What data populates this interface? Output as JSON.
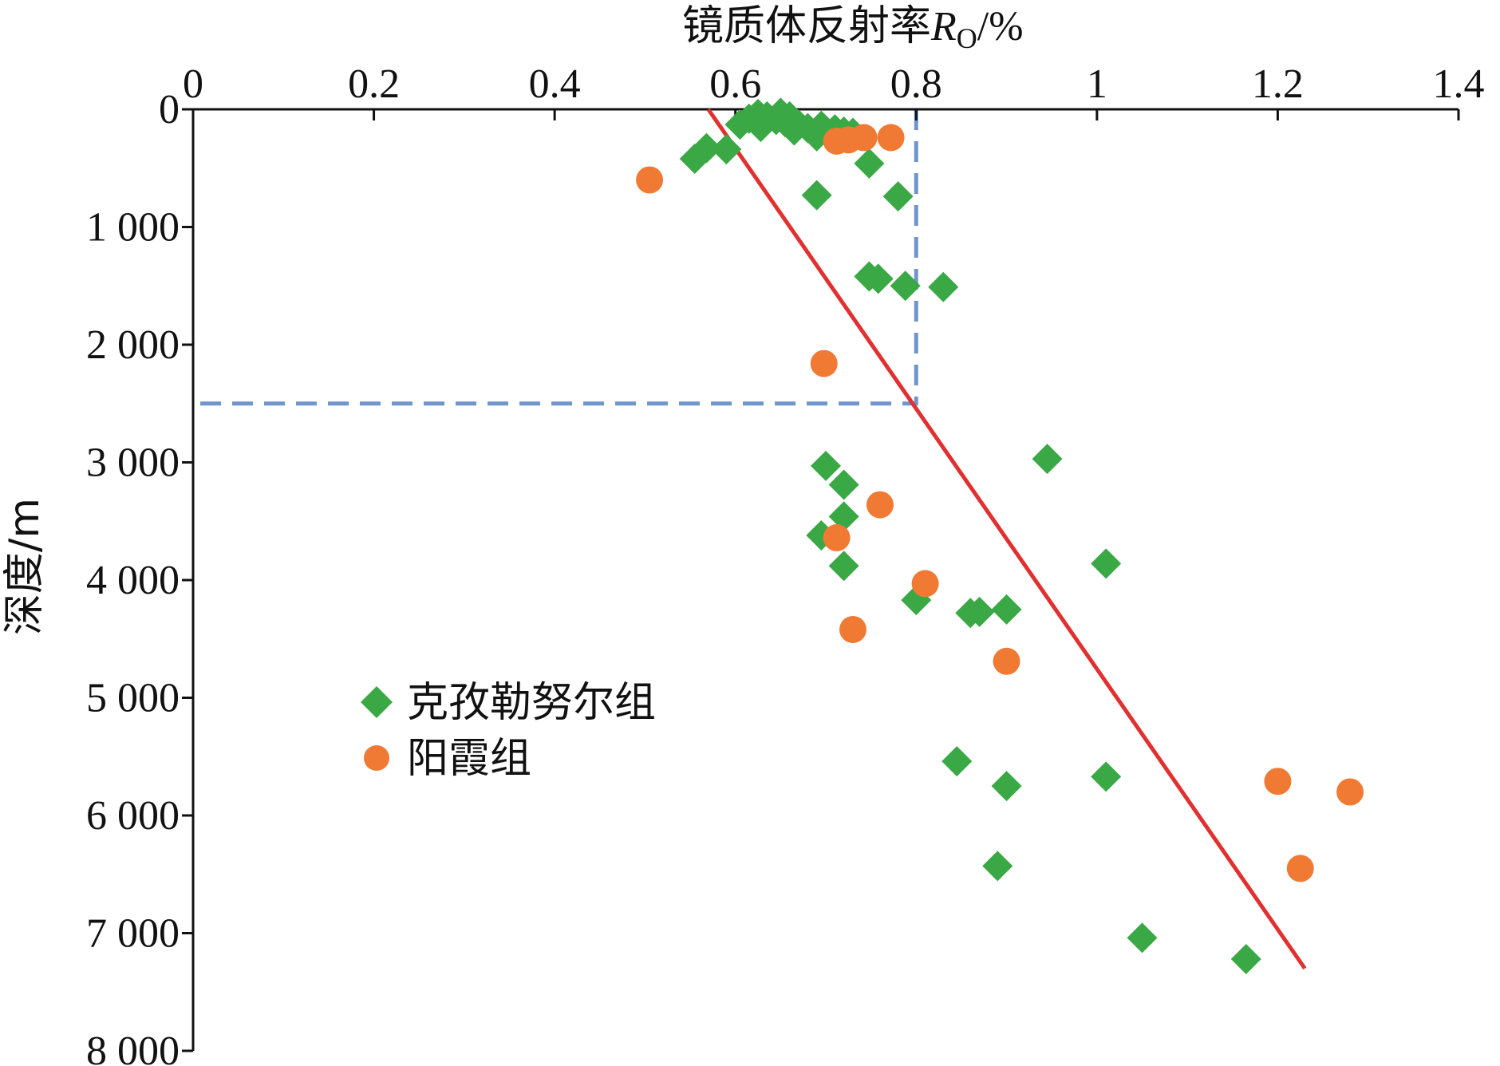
{
  "chart_data": {
    "type": "scatter",
    "x_axis": {
      "label_main": "镜质体反射率",
      "label_symbol": "R",
      "label_sub": "O",
      "label_unit": "/%",
      "range": [
        0,
        1.4
      ],
      "ticks": [
        0,
        0.2,
        0.4,
        0.6,
        0.8,
        1,
        1.2,
        1.4
      ],
      "tick_labels": [
        "0",
        "0.2",
        "0.4",
        "0.6",
        "0.8",
        "1",
        "1.2",
        "1.4"
      ],
      "position": "top"
    },
    "y_axis": {
      "label": "深度/m",
      "range": [
        0,
        8000
      ],
      "inverted": true,
      "ticks": [
        0,
        1000,
        2000,
        3000,
        4000,
        5000,
        6000,
        7000,
        8000
      ],
      "tick_labels": [
        "0",
        "1 000",
        "2 000",
        "3 000",
        "4 000",
        "5 000",
        "6 000",
        "7 000",
        "8 000"
      ]
    },
    "grid": false,
    "legend_position": "center-left",
    "series": [
      {
        "name": "克孜勒努尔组",
        "marker": "diamond",
        "color": "#3aa845",
        "points": [
          [
            0.555,
            420
          ],
          [
            0.568,
            330
          ],
          [
            0.59,
            340
          ],
          [
            0.605,
            130
          ],
          [
            0.615,
            80
          ],
          [
            0.625,
            40
          ],
          [
            0.628,
            150
          ],
          [
            0.635,
            60
          ],
          [
            0.645,
            90
          ],
          [
            0.65,
            30
          ],
          [
            0.655,
            110
          ],
          [
            0.66,
            60
          ],
          [
            0.665,
            180
          ],
          [
            0.67,
            130
          ],
          [
            0.68,
            160
          ],
          [
            0.69,
            230
          ],
          [
            0.695,
            140
          ],
          [
            0.71,
            170
          ],
          [
            0.72,
            190
          ],
          [
            0.73,
            200
          ],
          [
            0.748,
            460
          ],
          [
            0.69,
            730
          ],
          [
            0.78,
            740
          ],
          [
            0.748,
            1420
          ],
          [
            0.758,
            1440
          ],
          [
            0.788,
            1500
          ],
          [
            0.83,
            1510
          ],
          [
            0.7,
            3030
          ],
          [
            0.72,
            3190
          ],
          [
            0.72,
            3460
          ],
          [
            0.695,
            3620
          ],
          [
            0.72,
            3880
          ],
          [
            0.8,
            4170
          ],
          [
            0.86,
            4280
          ],
          [
            0.87,
            4270
          ],
          [
            0.9,
            4250
          ],
          [
            0.945,
            2970
          ],
          [
            1.01,
            3860
          ],
          [
            0.845,
            5540
          ],
          [
            0.9,
            5750
          ],
          [
            1.01,
            5670
          ],
          [
            0.89,
            6430
          ],
          [
            1.05,
            7040
          ],
          [
            1.165,
            7220
          ]
        ]
      },
      {
        "name": "阳霞组",
        "marker": "circle",
        "color": "#f07a34",
        "points": [
          [
            0.505,
            600
          ],
          [
            0.712,
            270
          ],
          [
            0.725,
            260
          ],
          [
            0.742,
            240
          ],
          [
            0.772,
            240
          ],
          [
            0.698,
            2160
          ],
          [
            0.76,
            3360
          ],
          [
            0.712,
            3640
          ],
          [
            0.81,
            4030
          ],
          [
            0.73,
            4420
          ],
          [
            0.9,
            4690
          ],
          [
            1.2,
            5710
          ],
          [
            1.28,
            5800
          ],
          [
            1.225,
            6450
          ]
        ]
      }
    ],
    "lines": [
      {
        "kind": "trend",
        "color": "#e03030",
        "from": [
          0.57,
          0
        ],
        "to": [
          1.23,
          7300
        ]
      },
      {
        "kind": "reference",
        "color": "#6f95cc",
        "dashed": true,
        "points": [
          [
            0.8,
            0
          ],
          [
            0.8,
            2500
          ],
          [
            0,
            2500
          ]
        ]
      }
    ]
  }
}
